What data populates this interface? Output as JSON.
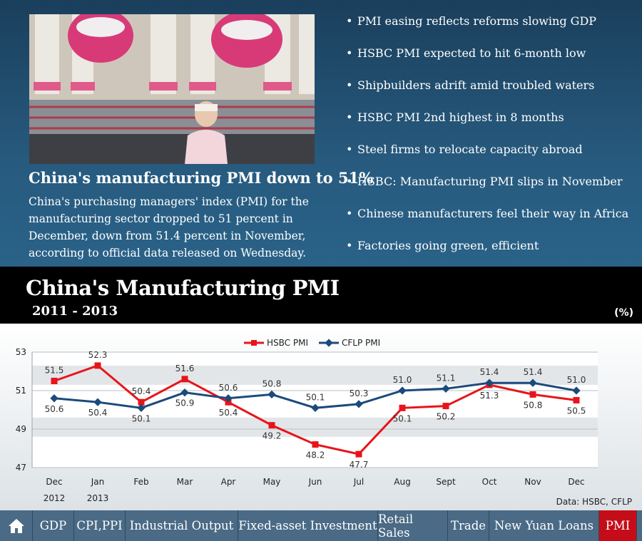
{
  "article": {
    "headline": "China's manufacturing PMI down to 51%",
    "summary": "China's purchasing managers' index (PMI) for the manufacturing sector dropped to 51 percent in December, down from 51.4 percent in November, according to official data released on Wednesday."
  },
  "news_links": [
    "PMI easing reflects reforms slowing GDP",
    "HSBC PMI expected to hit 6-month low",
    "Shipbuilders adrift amid troubled waters",
    "HSBC PMI 2nd highest in 8 months",
    "Steel firms to relocate capacity abroad",
    "HSBC: Manufacturing PMI slips in November",
    "Chinese manufacturers feel their way in Africa",
    "Factories going green, efficient"
  ],
  "chart_data": {
    "type": "line",
    "title": "China's Manufacturing PMI",
    "subtitle": "2011 - 2013",
    "unit": "(%)",
    "source": "Data: HSBC, CFLP",
    "categories": [
      "Dec",
      "Jan",
      "Feb",
      "Mar",
      "Apr",
      "May",
      "Jun",
      "Jul",
      "Aug",
      "Sept",
      "Oct",
      "Nov",
      "Dec"
    ],
    "year_labels": [
      "2012",
      "2013",
      "",
      "",
      "",
      "",
      "",
      "",
      "",
      "",
      "",
      "",
      ""
    ],
    "ylim": [
      47,
      53
    ],
    "yticks": [
      "47",
      "49",
      "51",
      "53"
    ],
    "legend_position": "top",
    "series": [
      {
        "name": "HSBC PMI",
        "color": "#e8141a",
        "values": [
          51.5,
          52.3,
          50.4,
          51.6,
          50.4,
          49.2,
          48.2,
          47.7,
          50.1,
          50.2,
          51.3,
          50.8,
          50.5
        ],
        "labels": [
          "51.5",
          "52.3",
          "50.4",
          "51.6",
          "50.4",
          "49.2",
          "48.2",
          "47.7",
          "50.1",
          "50.2",
          "51.3",
          "50.8",
          "50.5"
        ]
      },
      {
        "name": "CFLP PMI",
        "color": "#1b4a7c",
        "values": [
          50.6,
          50.4,
          50.1,
          50.9,
          50.6,
          50.8,
          50.1,
          50.3,
          51.0,
          51.1,
          51.4,
          51.4,
          51.0
        ],
        "labels": [
          "50.6",
          "50.4",
          "50.1",
          "50.9",
          "50.6",
          "50.8",
          "50.1",
          "50.3",
          "51.0",
          "51.1",
          "51.4",
          "51.4",
          "51.0"
        ]
      }
    ]
  },
  "nav": {
    "items": [
      "GDP",
      "CPI,PPI",
      "Industrial Output",
      "Fixed-asset Investment",
      "Retail Sales",
      "Trade",
      "New Yuan Loans",
      "PMI"
    ],
    "active": "PMI"
  }
}
